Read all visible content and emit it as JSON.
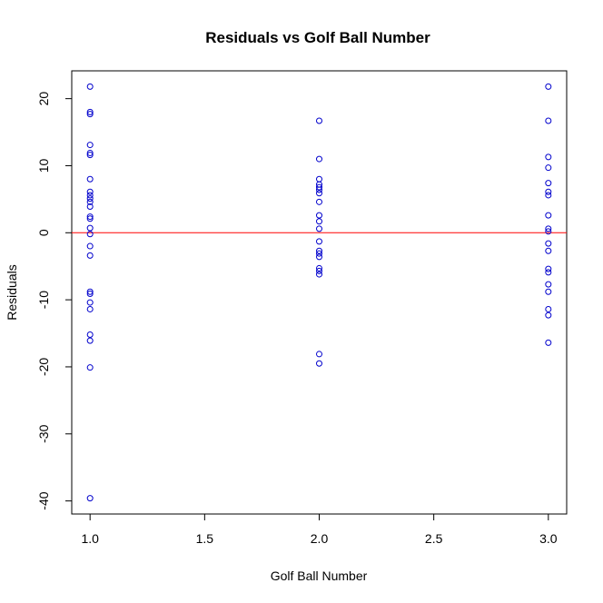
{
  "chart_data": {
    "type": "scatter",
    "title": "Residuals vs Golf Ball Number",
    "x_label": "Golf Ball Number",
    "y_label": "Residuals",
    "x": [
      1,
      1,
      1,
      1,
      1,
      1,
      1,
      1,
      1,
      1,
      1,
      1,
      1,
      1,
      1,
      1,
      1,
      1,
      1,
      1,
      1,
      1,
      1,
      1,
      1,
      1,
      2,
      2,
      2,
      2,
      2,
      2,
      2,
      2,
      2,
      2,
      2,
      2,
      2,
      2,
      2,
      2,
      2,
      2,
      2,
      2,
      3,
      3,
      3,
      3,
      3,
      3,
      3,
      3,
      3,
      3,
      3,
      3,
      3,
      3,
      3,
      3,
      3,
      3,
      3
    ],
    "values": [
      21.8,
      18.0,
      17.7,
      13.1,
      11.9,
      11.6,
      8.0,
      6.1,
      5.6,
      5.1,
      4.6,
      3.9,
      2.4,
      2.1,
      0.7,
      -0.2,
      -2.0,
      -3.4,
      -8.8,
      -9.1,
      -10.4,
      -11.4,
      -15.2,
      -16.1,
      -20.1,
      -39.6,
      16.7,
      11.0,
      8.0,
      7.2,
      6.8,
      6.4,
      5.9,
      4.6,
      2.6,
      1.7,
      0.6,
      -1.3,
      -2.7,
      -3.1,
      -3.6,
      -5.3,
      -5.7,
      -6.2,
      -18.1,
      -19.5,
      21.8,
      16.7,
      11.3,
      9.7,
      7.4,
      6.1,
      5.6,
      2.6,
      0.6,
      0.2,
      -1.6,
      -2.7,
      -5.4,
      -5.9,
      -7.7,
      -8.8,
      -11.4,
      -12.3,
      -16.4
    ],
    "color": "#0000cc",
    "hline": 0,
    "hline_color": "#ff0000",
    "xlim": [
      0.92,
      3.08
    ],
    "ylim": [
      -41.95,
      24.15
    ],
    "xticks": [
      {
        "value": 1,
        "label": "1.0"
      },
      {
        "value": 1.5,
        "label": "1.5"
      },
      {
        "value": 2,
        "label": "2.0"
      },
      {
        "value": 2.5,
        "label": "2.5"
      },
      {
        "value": 3,
        "label": "3.0"
      }
    ],
    "yticks": [
      -40,
      -30,
      -20,
      -10,
      0,
      10,
      20
    ]
  }
}
